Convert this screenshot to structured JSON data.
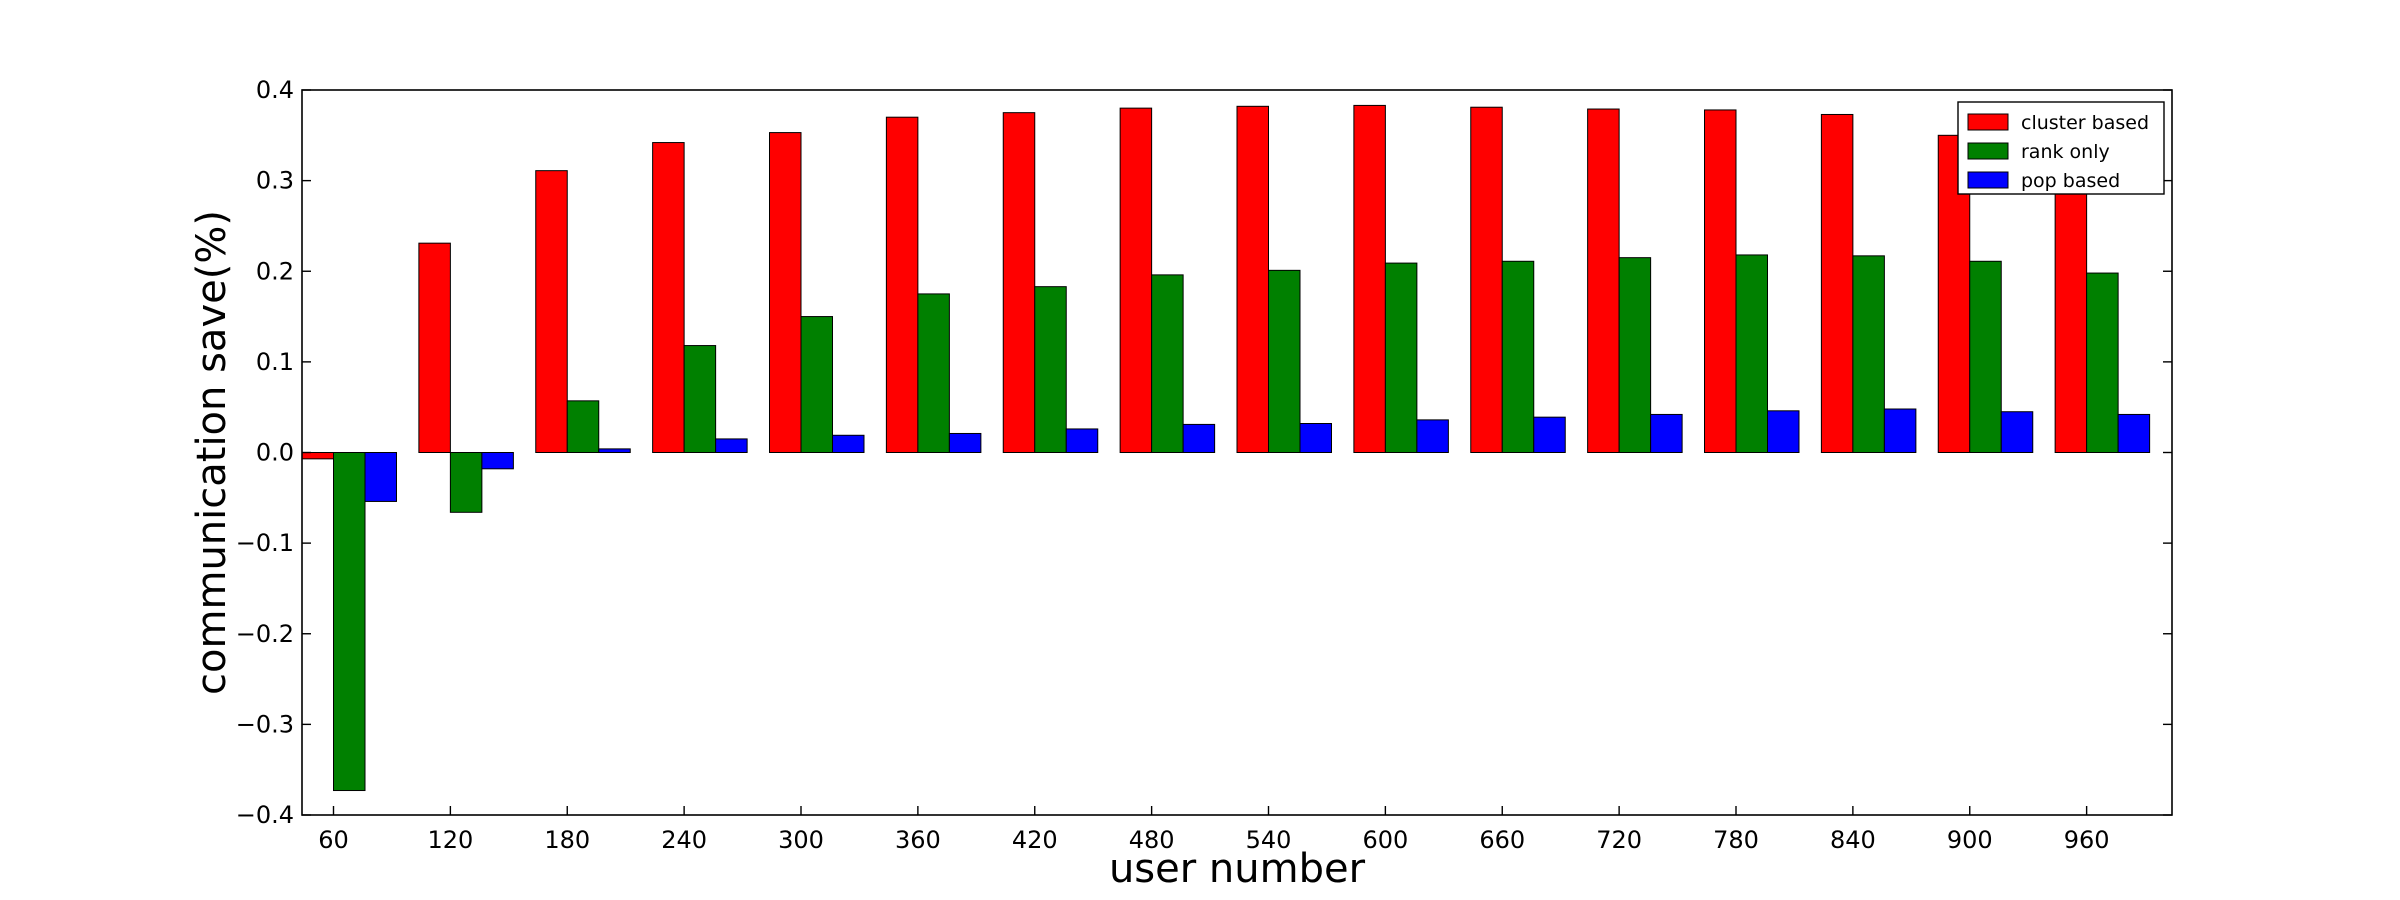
{
  "chart_data": {
    "type": "bar",
    "title": "",
    "xlabel": "user number",
    "ylabel": "communication save(%)",
    "categories": [
      "60",
      "120",
      "180",
      "240",
      "300",
      "360",
      "420",
      "480",
      "540",
      "600",
      "660",
      "720",
      "780",
      "840",
      "900",
      "960"
    ],
    "ylim": [
      -0.4,
      0.4
    ],
    "yticks": [
      "−0.4",
      "−0.3",
      "−0.2",
      "−0.1",
      "0.0",
      "0.1",
      "0.2",
      "0.3",
      "0.4"
    ],
    "ytick_values": [
      -0.4,
      -0.3,
      -0.2,
      -0.1,
      0.0,
      0.1,
      0.2,
      0.3,
      0.4
    ],
    "legend_position": "top-right",
    "grid": false,
    "series": [
      {
        "name": "cluster based",
        "color": "#ff0000",
        "values": [
          -0.007,
          0.231,
          0.311,
          0.342,
          0.353,
          0.37,
          0.375,
          0.38,
          0.382,
          0.383,
          0.381,
          0.379,
          0.378,
          0.373,
          0.35,
          0.35
        ]
      },
      {
        "name": "rank only",
        "color": "#008000",
        "values": [
          -0.373,
          -0.066,
          0.057,
          0.118,
          0.15,
          0.175,
          0.183,
          0.196,
          0.201,
          0.209,
          0.211,
          0.215,
          0.218,
          0.217,
          0.211,
          0.198
        ]
      },
      {
        "name": "pop based",
        "color": "#0000ff",
        "values": [
          -0.054,
          -0.018,
          0.004,
          0.015,
          0.019,
          0.021,
          0.026,
          0.031,
          0.032,
          0.036,
          0.039,
          0.042,
          0.046,
          0.048,
          0.045,
          0.042
        ]
      }
    ]
  }
}
